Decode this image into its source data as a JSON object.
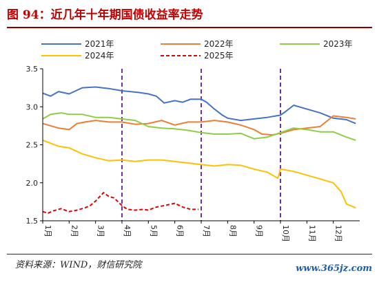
{
  "title": "图 94：近几年十年期国债收益率走势",
  "source": "资料来源：WIND，财信研究院",
  "watermark": "www.365jz.com",
  "colors": {
    "title": "#c00000",
    "rule": "#8b0000",
    "vline": "#7030a0",
    "s2021": "#4472c4",
    "s2022": "#ed7d31",
    "s2023": "#8fcc45",
    "s2024": "#ffc000",
    "s2025": "#e00000"
  },
  "chart_data": {
    "type": "line",
    "title": "",
    "xlabel": "",
    "ylabel": "",
    "ylim": [
      1.5,
      3.5
    ],
    "yticks": [
      1.5,
      2.0,
      2.5,
      3.0,
      3.5
    ],
    "ytick_labels": [
      "1.5",
      "2.0",
      "2.5",
      "3.0",
      "3.5"
    ],
    "xlim": [
      0,
      12
    ],
    "month_labels": [
      "1月",
      "2月",
      "3月",
      "4月",
      "5月",
      "6月",
      "7月",
      "8月",
      "9月",
      "10月",
      "11月",
      "12月"
    ],
    "grid": false,
    "legend_position": "top",
    "vertical_dashed_lines_at_month": [
      3,
      6,
      9
    ],
    "series": [
      {
        "name": "2021年",
        "color_key": "s2021",
        "dashed": false,
        "x": [
          0,
          0.3,
          0.6,
          1.0,
          1.5,
          2.0,
          2.5,
          3.0,
          3.3,
          3.6,
          4.0,
          4.3,
          4.6,
          5.0,
          5.3,
          5.6,
          6.0,
          6.2,
          6.5,
          6.8,
          7.0,
          7.5,
          8.0,
          8.5,
          9.0,
          9.2,
          9.5,
          10.0,
          10.5,
          11.0,
          11.5,
          11.85
        ],
        "y": [
          3.18,
          3.14,
          3.2,
          3.17,
          3.25,
          3.26,
          3.24,
          3.21,
          3.2,
          3.19,
          3.17,
          3.14,
          3.05,
          3.08,
          3.06,
          3.1,
          3.1,
          3.06,
          2.97,
          2.89,
          2.85,
          2.82,
          2.84,
          2.86,
          2.89,
          2.94,
          3.02,
          2.97,
          2.92,
          2.85,
          2.83,
          2.78
        ]
      },
      {
        "name": "2022年",
        "color_key": "s2022",
        "dashed": false,
        "x": [
          0,
          0.3,
          0.6,
          1.0,
          1.3,
          1.6,
          2.0,
          2.5,
          3.0,
          3.5,
          4.0,
          4.5,
          5.0,
          5.5,
          6.0,
          6.5,
          7.0,
          7.5,
          8.0,
          8.3,
          8.7,
          9.0,
          9.5,
          10.0,
          10.5,
          11.0,
          11.5,
          11.85
        ],
        "y": [
          2.78,
          2.75,
          2.72,
          2.7,
          2.78,
          2.8,
          2.82,
          2.8,
          2.8,
          2.77,
          2.78,
          2.82,
          2.76,
          2.8,
          2.8,
          2.82,
          2.8,
          2.76,
          2.7,
          2.64,
          2.63,
          2.65,
          2.7,
          2.72,
          2.74,
          2.88,
          2.86,
          2.84
        ]
      },
      {
        "name": "2023年",
        "color_key": "s2023",
        "dashed": false,
        "x": [
          0,
          0.3,
          0.7,
          1.0,
          1.5,
          2.0,
          2.5,
          3.0,
          3.5,
          4.0,
          4.5,
          5.0,
          5.5,
          6.0,
          6.5,
          7.0,
          7.5,
          8.0,
          8.5,
          9.0,
          9.5,
          10.0,
          10.5,
          11.0,
          11.5,
          11.85
        ],
        "y": [
          2.84,
          2.9,
          2.92,
          2.9,
          2.9,
          2.86,
          2.86,
          2.84,
          2.82,
          2.74,
          2.72,
          2.71,
          2.69,
          2.66,
          2.64,
          2.64,
          2.65,
          2.58,
          2.6,
          2.66,
          2.72,
          2.7,
          2.67,
          2.67,
          2.6,
          2.56
        ]
      },
      {
        "name": "2024年",
        "color_key": "s2024",
        "dashed": false,
        "x": [
          0,
          0.3,
          0.6,
          1.0,
          1.5,
          2.0,
          2.5,
          3.0,
          3.5,
          4.0,
          4.5,
          5.0,
          5.5,
          6.0,
          6.5,
          7.0,
          7.5,
          8.0,
          8.5,
          8.9,
          9.0,
          9.5,
          10.0,
          10.5,
          11.0,
          11.3,
          11.5,
          11.85
        ],
        "y": [
          2.56,
          2.52,
          2.48,
          2.46,
          2.38,
          2.33,
          2.29,
          2.3,
          2.28,
          2.3,
          2.3,
          2.28,
          2.26,
          2.24,
          2.22,
          2.24,
          2.23,
          2.18,
          2.14,
          2.06,
          2.18,
          2.15,
          2.1,
          2.05,
          2.0,
          1.88,
          1.72,
          1.67
        ]
      },
      {
        "name": "2025年",
        "color_key": "s2025",
        "dashed": true,
        "x": [
          0,
          0.2,
          0.4,
          0.7,
          1.0,
          1.3,
          1.6,
          1.8,
          2.0,
          2.3,
          2.5,
          2.7,
          3.0,
          3.2,
          3.5,
          3.8,
          4.0,
          4.3,
          4.6,
          5.0,
          5.3,
          5.6,
          5.9
        ],
        "y": [
          1.62,
          1.6,
          1.63,
          1.66,
          1.62,
          1.64,
          1.67,
          1.7,
          1.76,
          1.87,
          1.82,
          1.8,
          1.7,
          1.65,
          1.64,
          1.65,
          1.64,
          1.68,
          1.7,
          1.73,
          1.68,
          1.65,
          1.65
        ]
      }
    ]
  }
}
